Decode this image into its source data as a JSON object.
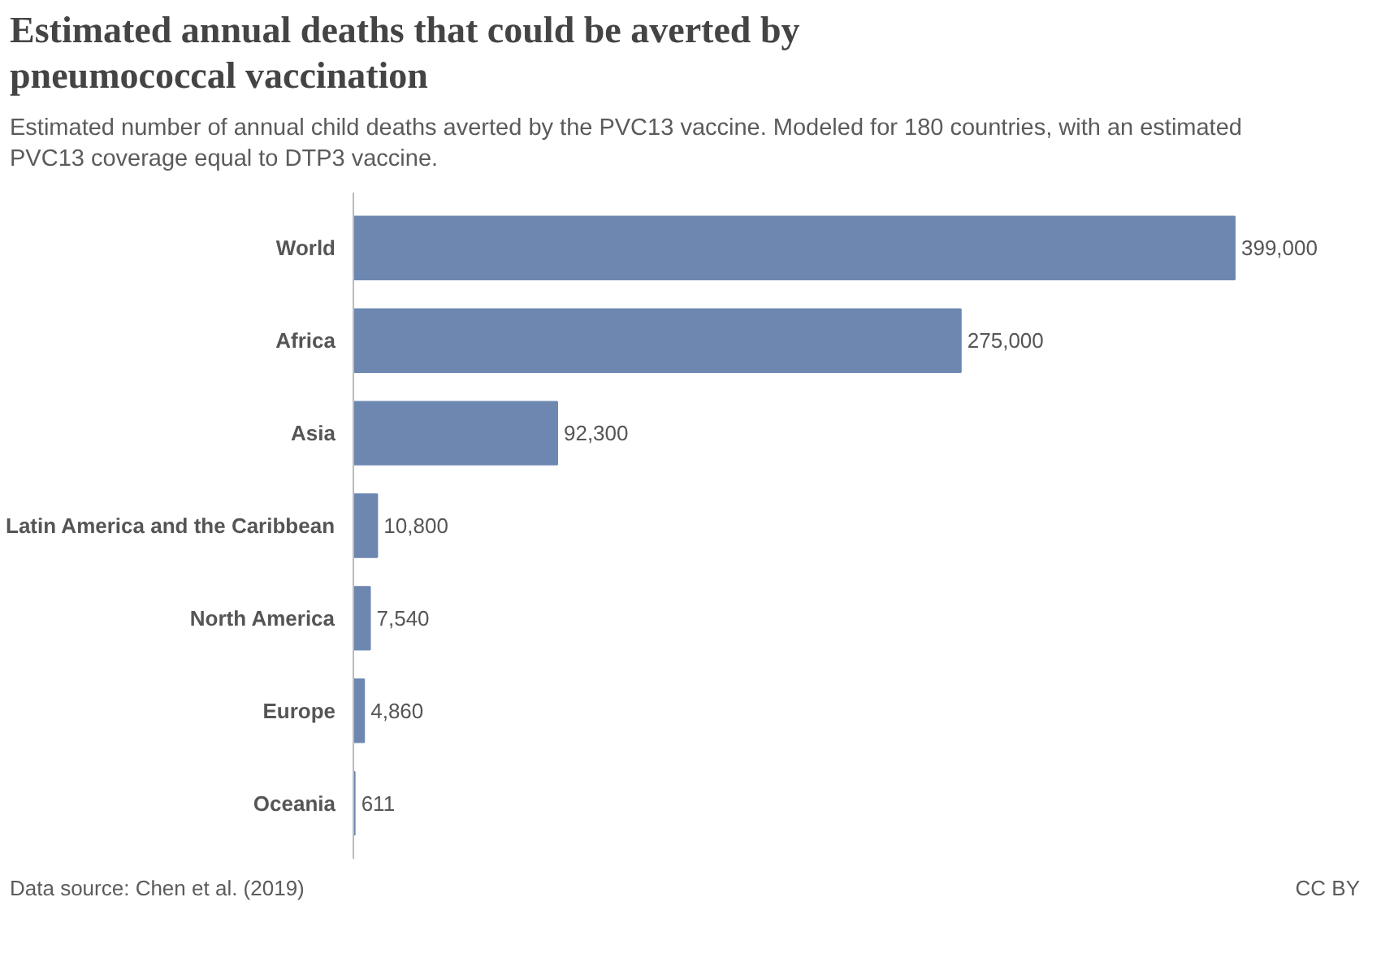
{
  "chart_data": {
    "type": "bar",
    "orientation": "horizontal",
    "title": "Estimated annual deaths that could be averted by pneumococcal vaccination",
    "subtitle": "Estimated number of annual child deaths averted by the PVC13 vaccine. Modeled for 180 countries, with an estimated PVC13 coverage equal to DTP3 vaccine.",
    "categories": [
      "World",
      "Africa",
      "Asia",
      "Latin America and the Caribbean",
      "North America",
      "Europe",
      "Oceania"
    ],
    "values": [
      399000,
      275000,
      92300,
      10800,
      7540,
      4860,
      611
    ],
    "value_labels": [
      "399,000",
      "275,000",
      "92,300",
      "10,800",
      "7,540",
      "4,860",
      "611"
    ],
    "color": "#6d87b1",
    "grid": false,
    "annotations": [
      "Data source: Chen et al. (2019)",
      "CC BY"
    ]
  }
}
